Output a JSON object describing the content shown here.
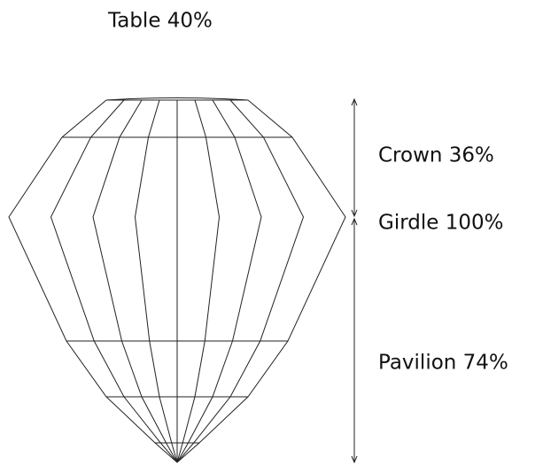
{
  "labels": {
    "table": "Table 40%",
    "crown": "Crown 36%",
    "girdle": "Girdle 100%",
    "pavilion": "Pavilion 74%"
  }
}
